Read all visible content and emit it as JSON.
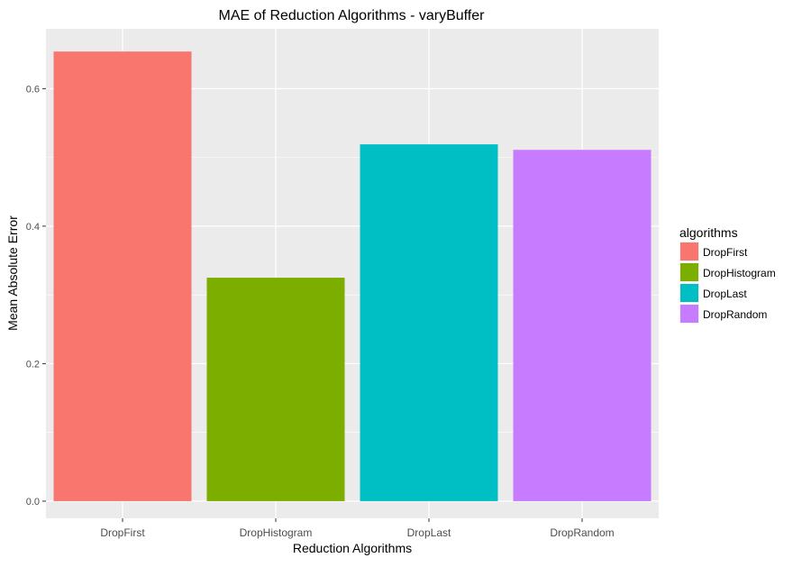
{
  "chart_data": {
    "type": "bar",
    "title": "MAE of Reduction Algorithms - varyBuffer",
    "xlabel": "Reduction Algorithms",
    "ylabel": "Mean Absolute Error",
    "categories": [
      "DropFirst",
      "DropHistogram",
      "DropLast",
      "DropRandom"
    ],
    "values": [
      0.654,
      0.325,
      0.519,
      0.511
    ],
    "ylim": [
      -0.025,
      0.687
    ],
    "yticks": [
      0.0,
      0.2,
      0.4,
      0.6
    ],
    "ytick_labels": [
      "0.0",
      "0.2",
      "0.4",
      "0.6"
    ],
    "grid": true,
    "legend": {
      "title": "algorithms",
      "position": "right",
      "entries": [
        "DropFirst",
        "DropHistogram",
        "DropLast",
        "DropRandom"
      ]
    },
    "colors": [
      "#F8766D",
      "#7CAE00",
      "#00BFC4",
      "#C77CFF"
    ],
    "panel_background": "#EBEBEB",
    "grid_color": "#FFFFFF"
  }
}
